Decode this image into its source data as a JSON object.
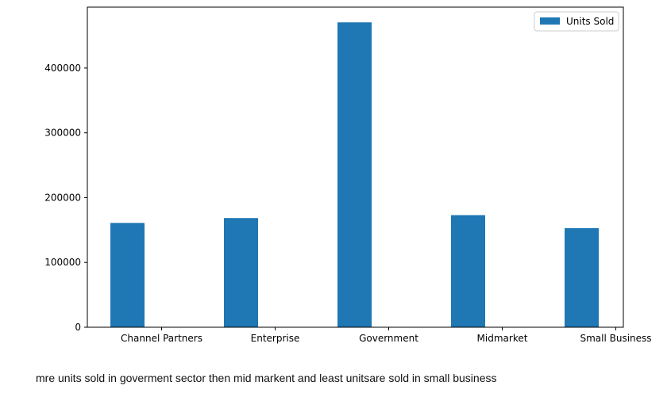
{
  "chart_data": {
    "type": "bar",
    "categories": [
      "Channel Partners",
      "Enterprise",
      "Government",
      "Midmarket",
      "Small Business"
    ],
    "series": [
      {
        "name": "Units Sold",
        "values": [
          161000,
          168500,
          470500,
          173000,
          153000
        ],
        "color": "#1f77b4"
      }
    ],
    "yticks": [
      0,
      100000,
      200000,
      300000,
      400000
    ],
    "ytick_labels": [
      "0",
      "100000",
      "200000",
      "300000",
      "400000"
    ],
    "ylim": [
      0,
      494000
    ],
    "legend_position": "top-right",
    "grid": false
  },
  "caption": "mre units sold in goverment sector then mid markent and least unitsare sold in small business"
}
